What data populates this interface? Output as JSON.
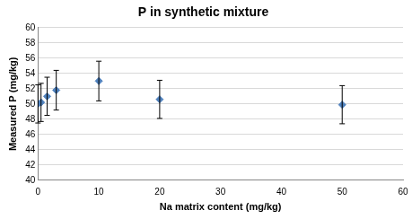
{
  "chart_data": {
    "type": "scatter",
    "title": "P in synthetic mixture",
    "x_label": "Na matrix content (mg/kg)",
    "y_label": "Measured P (mg/kg)",
    "x": [
      0,
      0.5,
      1.5,
      3,
      10,
      20,
      50
    ],
    "values": [
      50.0,
      50.2,
      51.0,
      51.8,
      53.0,
      50.6,
      49.9
    ],
    "errors": [
      2.5,
      2.5,
      2.5,
      2.6,
      2.6,
      2.5,
      2.5
    ],
    "color": "#4f81bd",
    "marker": "diamond",
    "xlim": [
      0,
      60
    ],
    "xticks": [
      0,
      10,
      20,
      30,
      40,
      50,
      60
    ],
    "ylim": [
      40,
      60
    ],
    "yticks": [
      40,
      42,
      44,
      46,
      48,
      50,
      52,
      54,
      56,
      58,
      60
    ],
    "grid": true
  }
}
